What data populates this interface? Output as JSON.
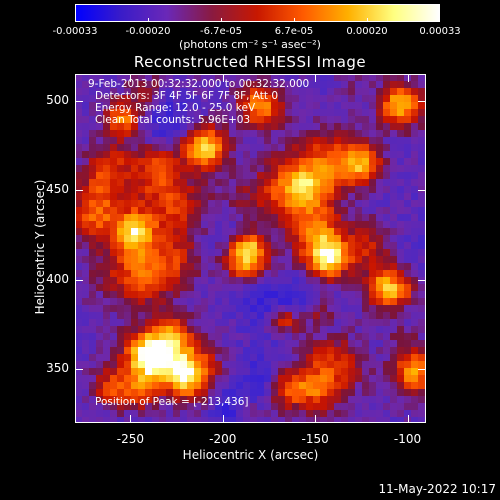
{
  "colorbar": {
    "ticks": [
      "-0.00033",
      "-0.00020",
      "-6.7e-05",
      "6.7e-05",
      "0.00020",
      "0.00033"
    ],
    "unit_label": "(photons cm⁻² s⁻¹ asec⁻²)",
    "colors": [
      "#0000ff",
      "#3a1cc8",
      "#6a28b8",
      "#8a1a40",
      "#c81800",
      "#ff5a00",
      "#ffb000",
      "#ffff80",
      "#ffffff"
    ]
  },
  "title": "Reconstructed RHESSI Image",
  "info_lines": [
    "9-Feb-2013 00:32:32.000 to 00:32:32.000",
    "Detectors: 3F 4F 5F 6F 7F 8F, Att 0",
    "Energy Range: 12.0 - 25.0 keV",
    "Clean    Total counts: 5.96E+03"
  ],
  "peak_text": "Position of Peak = [-213,436]",
  "timestamp": "11-May-2022 10:17",
  "chart_data": {
    "type": "heatmap",
    "title": "Reconstructed RHESSI Image",
    "xlabel": "Heliocentric X (arcsec)",
    "ylabel": "Heliocentric Y (arcsec)",
    "xlim": [
      -280,
      -90
    ],
    "ylim": [
      320,
      515
    ],
    "xticks": [
      -250,
      -200,
      -150,
      -100
    ],
    "yticks": [
      350,
      400,
      450,
      500
    ],
    "xtick_labels": [
      "-250",
      "-200",
      "-150",
      "-100"
    ],
    "ytick_labels": [
      "350",
      "400",
      "450",
      "500"
    ],
    "value_range": [
      -0.00033,
      0.00033
    ],
    "peak": [
      -213,
      436
    ]
  }
}
